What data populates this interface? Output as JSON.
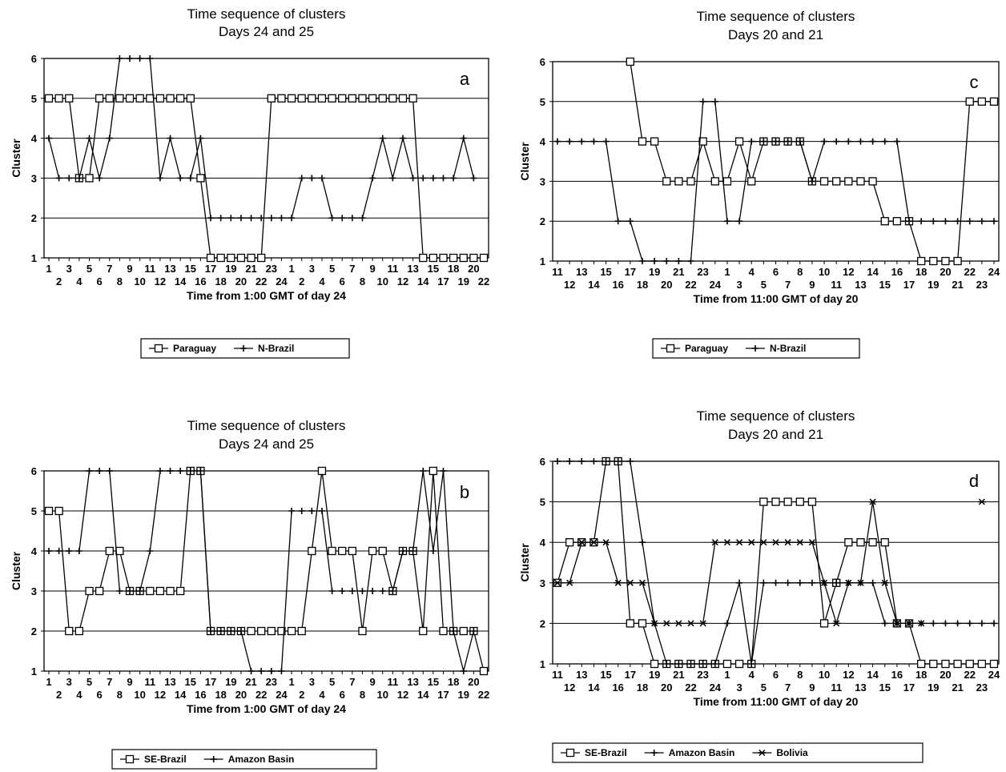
{
  "chart_data": [
    {
      "type": "line",
      "panel_label": "a",
      "title": "Time sequence of clusters",
      "subtitle": "Days 24 and 25",
      "xlabel": "Time from 1:00 GMT of day 24",
      "ylabel": "Cluster",
      "ylim": [
        1,
        6
      ],
      "yticks": [
        "1",
        "2",
        "3",
        "4",
        "5",
        "6"
      ],
      "grid": "horizontal",
      "legend_position": "bottom",
      "categories": [
        "1",
        "2",
        "3",
        "4",
        "5",
        "6",
        "7",
        "8",
        "9",
        "10",
        "11",
        "12",
        "13",
        "14",
        "15",
        "16",
        "17",
        "18",
        "19",
        "20",
        "21",
        "22",
        "23",
        "24",
        "1",
        "2",
        "3",
        "4",
        "5",
        "6",
        "7",
        "8",
        "9",
        "10",
        "11",
        "12",
        "13",
        "14",
        "15",
        "17",
        "18",
        "19",
        "20",
        "22"
      ],
      "series": [
        {
          "name": "Paraguay",
          "marker": "square",
          "values": [
            5,
            5,
            5,
            3,
            3,
            5,
            5,
            5,
            5,
            5,
            5,
            5,
            5,
            5,
            5,
            3,
            1,
            1,
            1,
            1,
            1,
            1,
            5,
            5,
            5,
            5,
            5,
            5,
            5,
            5,
            5,
            5,
            5,
            5,
            5,
            5,
            5,
            1,
            1,
            1,
            1,
            1,
            1,
            1
          ]
        },
        {
          "name": "N-Brazil",
          "marker": "plus",
          "values": [
            4,
            3,
            3,
            3,
            4,
            3,
            4,
            6,
            6,
            6,
            6,
            3,
            4,
            3,
            3,
            4,
            2,
            2,
            2,
            2,
            2,
            2,
            2,
            2,
            2,
            3,
            3,
            3,
            2,
            2,
            2,
            2,
            3,
            4,
            3,
            4,
            3,
            3,
            3,
            3,
            3,
            4,
            3,
            null
          ]
        }
      ]
    },
    {
      "type": "line",
      "panel_label": "c",
      "title": "Time sequence of clusters",
      "subtitle": "Days 20 and 21",
      "xlabel": "Time from 11:00 GMT of day 20",
      "ylabel": "Cluster",
      "ylim": [
        1,
        6
      ],
      "yticks": [
        "1",
        "2",
        "3",
        "4",
        "5",
        "6"
      ],
      "grid": "horizontal",
      "legend_position": "bottom",
      "categories": [
        "11",
        "12",
        "13",
        "14",
        "15",
        "16",
        "17",
        "18",
        "19",
        "20",
        "21",
        "22",
        "23",
        "24",
        "1",
        "3",
        "4",
        "5",
        "6",
        "7",
        "8",
        "9",
        "10",
        "11",
        "12",
        "13",
        "14",
        "15",
        "16",
        "17",
        "18",
        "19",
        "20",
        "21",
        "22",
        "23",
        "24"
      ],
      "series": [
        {
          "name": "Paraguay",
          "marker": "square",
          "values": [
            null,
            null,
            null,
            null,
            null,
            null,
            6,
            4,
            4,
            3,
            3,
            3,
            4,
            3,
            3,
            4,
            3,
            4,
            4,
            4,
            4,
            3,
            3,
            3,
            3,
            3,
            3,
            2,
            2,
            2,
            1,
            1,
            1,
            1,
            5,
            5,
            5
          ]
        },
        {
          "name": "N-Brazil",
          "marker": "plus",
          "values": [
            4,
            4,
            4,
            4,
            4,
            2,
            2,
            1,
            1,
            1,
            1,
            1,
            5,
            5,
            2,
            2,
            4,
            4,
            4,
            4,
            4,
            3,
            4,
            4,
            4,
            4,
            4,
            4,
            4,
            2,
            2,
            2,
            2,
            2,
            2,
            2,
            2
          ]
        }
      ]
    },
    {
      "type": "line",
      "panel_label": "b",
      "title": "Time sequence of clusters",
      "subtitle": "Days 24 and 25",
      "xlabel": "Time from 1:00 GMT of day 24",
      "ylabel": "Cluster",
      "ylim": [
        1,
        6
      ],
      "yticks": [
        "1",
        "2",
        "3",
        "4",
        "5",
        "6"
      ],
      "grid": "horizontal",
      "legend_position": "bottom",
      "categories": [
        "1",
        "2",
        "3",
        "4",
        "5",
        "6",
        "7",
        "8",
        "9",
        "10",
        "11",
        "12",
        "13",
        "14",
        "15",
        "16",
        "17",
        "18",
        "19",
        "20",
        "21",
        "22",
        "23",
        "24",
        "1",
        "2",
        "3",
        "4",
        "5",
        "6",
        "7",
        "8",
        "9",
        "10",
        "11",
        "12",
        "13",
        "14",
        "15",
        "17",
        "18",
        "19",
        "20",
        "22"
      ],
      "series": [
        {
          "name": "SE-Brazil",
          "marker": "square",
          "values": [
            5,
            5,
            2,
            2,
            3,
            3,
            4,
            4,
            3,
            3,
            3,
            3,
            3,
            3,
            6,
            6,
            2,
            2,
            2,
            2,
            2,
            2,
            2,
            2,
            2,
            2,
            4,
            6,
            4,
            4,
            4,
            2,
            4,
            4,
            3,
            4,
            4,
            2,
            6,
            2,
            2,
            2,
            2,
            1
          ]
        },
        {
          "name": "Amazon Basin",
          "marker": "plus",
          "values": [
            4,
            4,
            4,
            4,
            6,
            6,
            6,
            3,
            3,
            3,
            4,
            6,
            6,
            6,
            6,
            6,
            2,
            2,
            2,
            2,
            1,
            1,
            1,
            1,
            5,
            5,
            5,
            5,
            3,
            3,
            3,
            3,
            3,
            3,
            3,
            4,
            4,
            6,
            4,
            6,
            2,
            1,
            2,
            null
          ]
        }
      ]
    },
    {
      "type": "line",
      "panel_label": "d",
      "title": "Time sequence of clusters",
      "subtitle": "Days 20 and 21",
      "xlabel": "Time from 11:00 GMT of day 20",
      "ylabel": "Cluster",
      "ylim": [
        1,
        6
      ],
      "yticks": [
        "1",
        "2",
        "3",
        "4",
        "5",
        "6"
      ],
      "grid": "horizontal",
      "legend_position": "bottom",
      "categories": [
        "11",
        "12",
        "13",
        "14",
        "15",
        "16",
        "17",
        "18",
        "19",
        "20",
        "21",
        "22",
        "23",
        "24",
        "1",
        "3",
        "4",
        "5",
        "6",
        "7",
        "8",
        "9",
        "10",
        "11",
        "12",
        "13",
        "14",
        "15",
        "16",
        "17",
        "18",
        "19",
        "20",
        "21",
        "22",
        "23",
        "24"
      ],
      "series": [
        {
          "name": "SE-Brazil",
          "marker": "square",
          "values": [
            3,
            4,
            4,
            4,
            6,
            6,
            2,
            2,
            1,
            1,
            1,
            1,
            1,
            1,
            1,
            1,
            1,
            5,
            5,
            5,
            5,
            5,
            2,
            3,
            4,
            4,
            4,
            4,
            2,
            2,
            1,
            1,
            1,
            1,
            1,
            1,
            1
          ]
        },
        {
          "name": "Amazon Basin",
          "marker": "plus",
          "values": [
            6,
            6,
            6,
            6,
            6,
            6,
            6,
            4,
            2,
            1,
            1,
            1,
            1,
            1,
            2,
            3,
            1,
            3,
            3,
            3,
            3,
            3,
            3,
            3,
            3,
            3,
            3,
            2,
            2,
            2,
            2,
            2,
            2,
            2,
            2,
            2,
            2
          ]
        },
        {
          "name": "Bolivia",
          "marker": "star",
          "values": [
            3,
            3,
            4,
            4,
            4,
            3,
            3,
            3,
            2,
            2,
            2,
            2,
            2,
            4,
            4,
            4,
            4,
            4,
            4,
            4,
            4,
            4,
            3,
            2,
            3,
            3,
            5,
            3,
            2,
            2,
            2,
            null,
            null,
            null,
            null,
            5,
            null
          ]
        }
      ]
    }
  ]
}
